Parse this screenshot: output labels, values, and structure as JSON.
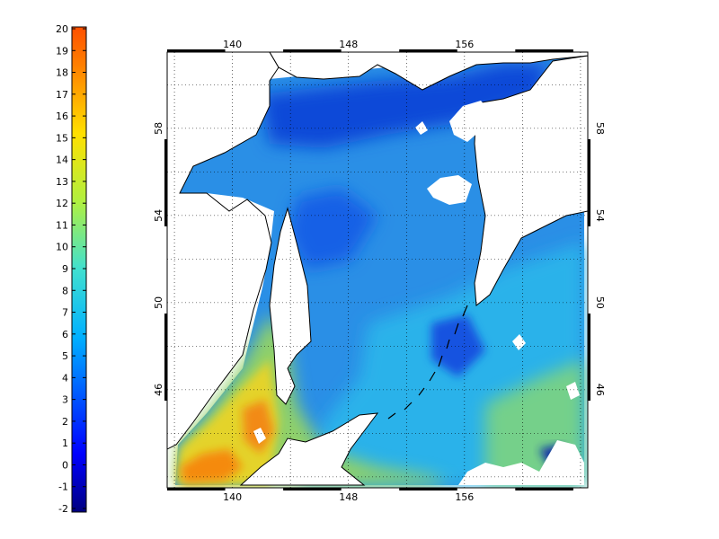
{
  "colorbar": {
    "ticks": [
      "20",
      "19",
      "18",
      "17",
      "16",
      "15",
      "14",
      "13",
      "12",
      "11",
      "10",
      "9",
      "8",
      "7",
      "6",
      "5",
      "4",
      "3",
      "2",
      "1",
      "0",
      "-1",
      "-2"
    ],
    "range": [
      -2,
      20
    ],
    "colormap": "jet"
  },
  "map": {
    "lon_labels": [
      "140",
      "148",
      "156"
    ],
    "lon_values": [
      140,
      148,
      156
    ],
    "lat_labels": [
      "58",
      "54",
      "50",
      "46"
    ],
    "lat_values": [
      58,
      54,
      50,
      46
    ],
    "lon_range": [
      135.5,
      164.5
    ],
    "lat_range": [
      41.5,
      61.5
    ],
    "grid": "dotted"
  },
  "colors": {
    "land": "#ffffff",
    "coast": "#000000",
    "deep_blue": "#0a3cd2",
    "mid_blue": "#1e7ef0",
    "cyan": "#30b8e8",
    "green": "#9ccf5a",
    "yellow": "#e6d02a",
    "orange": "#f58a10"
  }
}
